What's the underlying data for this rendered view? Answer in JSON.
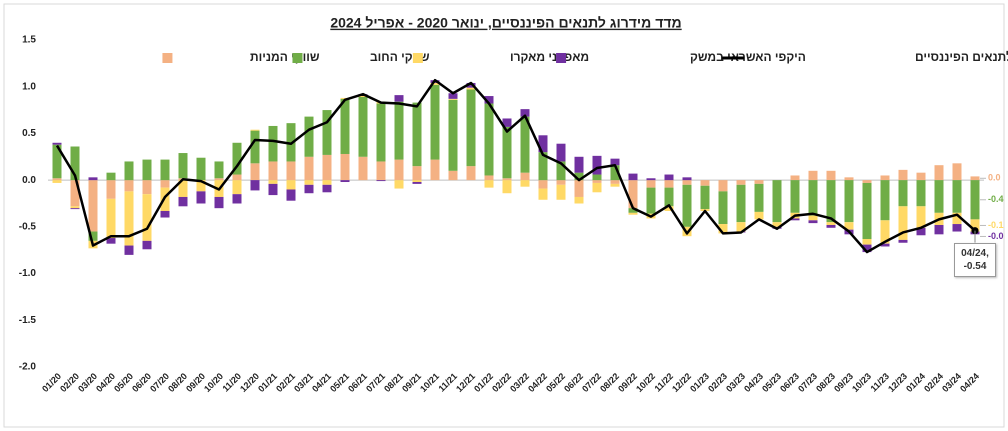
{
  "chart_data": {
    "type": "bar-line",
    "title": "מדד מידרוג לתנאים הפיננסיים, ינואר 2020 - אפריל 2024",
    "categories": [
      "01/20",
      "02/20",
      "03/20",
      "04/20",
      "05/20",
      "06/20",
      "07/20",
      "08/20",
      "09/20",
      "10/20",
      "11/20",
      "12/20",
      "01/21",
      "02/21",
      "03/21",
      "04/21",
      "05/21",
      "06/21",
      "07/21",
      "08/21",
      "09/21",
      "10/21",
      "11/21",
      "12/21",
      "01/22",
      "02/22",
      "03/22",
      "04/22",
      "05/22",
      "06/22",
      "07/22",
      "08/22",
      "09/22",
      "10/22",
      "11/22",
      "12/22",
      "01/23",
      "02/23",
      "03/23",
      "04/23",
      "05/23",
      "06/23",
      "07/23",
      "08/23",
      "09/23",
      "10/23",
      "11/23",
      "12/23",
      "01/24",
      "02/24",
      "03/24",
      "04/24"
    ],
    "ylim": [
      -2,
      1.5
    ],
    "yticks": [
      1.5,
      {
        "value": 1,
        "label": "1.0"
      },
      0.5,
      {
        "value": 0,
        "label": "0.0"
      },
      -0.5,
      {
        "value": -1,
        "label": "-1.0"
      },
      -1.5,
      {
        "value": -2,
        "label": "-2.0"
      }
    ],
    "grid": false,
    "series": [
      {
        "name": "שווקי המניות",
        "kind": "bar",
        "color": "#f4b183",
        "values": [
          0.02,
          -0.28,
          -0.55,
          -0.2,
          -0.12,
          -0.15,
          -0.08,
          0.02,
          0,
          0.02,
          0.06,
          0.18,
          0.2,
          0.2,
          0.25,
          0.27,
          0.28,
          0.25,
          0.2,
          0.22,
          0.15,
          0.22,
          0.1,
          0.15,
          0.05,
          0.02,
          0.08,
          -0.09,
          -0.05,
          -0.18,
          -0.03,
          -0.04,
          -0.3,
          -0.08,
          -0.08,
          -0.05,
          -0.06,
          -0.12,
          -0.05,
          -0.04,
          0,
          0.05,
          0.1,
          0.1,
          0.03,
          -0.03,
          0.05,
          0.11,
          0.08,
          0.16,
          0.18,
          0.04
        ],
        "value_labels": [
          null,
          null,
          null,
          null,
          null,
          null,
          null,
          null,
          null,
          null,
          null,
          null,
          null,
          null,
          null,
          null,
          null,
          null,
          null,
          null,
          null,
          null,
          null,
          null,
          null,
          null,
          null,
          null,
          null,
          null,
          null,
          null,
          null,
          null,
          null,
          null,
          null,
          null,
          null,
          null,
          null,
          null,
          null,
          null,
          null,
          null,
          null,
          null,
          null,
          null,
          null,
          "0.0"
        ]
      },
      {
        "name": "שווקי החוב",
        "kind": "bar",
        "color": "#70ad47",
        "values": [
          0.36,
          0.36,
          -0.1,
          0.08,
          0.2,
          0.22,
          0.22,
          0.27,
          0.24,
          0.18,
          0.34,
          0.35,
          0.38,
          0.41,
          0.43,
          0.48,
          0.59,
          0.64,
          0.62,
          0.62,
          0.68,
          0.8,
          0.76,
          0.82,
          0.77,
          0.55,
          0.6,
          0.3,
          0.2,
          0.08,
          0.06,
          0.16,
          -0.05,
          -0.28,
          -0.2,
          -0.45,
          -0.25,
          -0.35,
          -0.4,
          -0.3,
          -0.45,
          -0.35,
          -0.38,
          -0.45,
          -0.45,
          -0.6,
          -0.43,
          -0.28,
          -0.28,
          -0.35,
          -0.35,
          -0.42
        ],
        "value_labels": [
          null,
          null,
          null,
          null,
          null,
          null,
          null,
          null,
          null,
          null,
          null,
          null,
          null,
          null,
          null,
          null,
          null,
          null,
          null,
          null,
          null,
          null,
          null,
          null,
          null,
          null,
          null,
          null,
          null,
          null,
          null,
          null,
          null,
          null,
          null,
          null,
          null,
          null,
          null,
          null,
          null,
          null,
          null,
          null,
          null,
          null,
          null,
          null,
          null,
          null,
          null,
          "-0.4"
        ]
      },
      {
        "name": "מאפייני מאקרו",
        "kind": "bar",
        "color": "#ffd966",
        "values": [
          -0.03,
          -0.02,
          -0.08,
          -0.42,
          -0.58,
          -0.5,
          -0.25,
          -0.18,
          -0.12,
          -0.18,
          -0.15,
          0.01,
          -0.04,
          -0.1,
          -0.05,
          -0.05,
          0.01,
          0.02,
          0.02,
          -0.09,
          -0.02,
          0.02,
          0.01,
          0.02,
          -0.08,
          -0.14,
          -0.07,
          -0.12,
          -0.16,
          -0.07,
          -0.1,
          -0.03,
          -0.02,
          -0.05,
          -0.05,
          -0.1,
          -0.02,
          -0.1,
          -0.1,
          -0.08,
          -0.05,
          -0.06,
          -0.05,
          -0.03,
          -0.08,
          -0.06,
          -0.25,
          -0.36,
          -0.23,
          -0.13,
          -0.12,
          -0.13
        ],
        "value_labels": [
          null,
          null,
          null,
          null,
          null,
          null,
          null,
          null,
          null,
          null,
          null,
          null,
          null,
          null,
          null,
          null,
          null,
          null,
          null,
          null,
          null,
          null,
          null,
          null,
          null,
          null,
          null,
          null,
          null,
          null,
          null,
          null,
          null,
          null,
          null,
          null,
          null,
          null,
          null,
          null,
          null,
          null,
          null,
          null,
          null,
          null,
          null,
          null,
          null,
          null,
          null,
          "-0.1"
        ]
      },
      {
        "name": "היקפי האשראי במשק",
        "kind": "bar",
        "color": "#7030a0",
        "values": [
          0.02,
          -0.01,
          0.03,
          -0.06,
          -0.1,
          -0.09,
          -0.07,
          -0.1,
          -0.13,
          -0.12,
          -0.1,
          -0.11,
          -0.12,
          -0.12,
          -0.09,
          -0.08,
          -0.02,
          0.01,
          -0.01,
          0.07,
          -0.02,
          0.03,
          0.06,
          0.05,
          0.08,
          0.09,
          0.08,
          0.18,
          0.19,
          0.17,
          0.2,
          0.07,
          0.07,
          0.02,
          0.06,
          0.03,
          0,
          0,
          -0.01,
          0,
          -0.02,
          -0.02,
          -0.03,
          -0.03,
          -0.05,
          -0.08,
          -0.03,
          -0.03,
          -0.08,
          -0.1,
          -0.08,
          -0.03
        ],
        "value_labels": [
          null,
          null,
          null,
          null,
          null,
          null,
          null,
          null,
          null,
          null,
          null,
          null,
          null,
          null,
          null,
          null,
          null,
          null,
          null,
          null,
          null,
          null,
          null,
          null,
          null,
          null,
          null,
          null,
          null,
          null,
          null,
          null,
          null,
          null,
          null,
          null,
          null,
          null,
          null,
          null,
          null,
          null,
          null,
          null,
          null,
          null,
          null,
          null,
          null,
          null,
          null,
          "-0.0"
        ]
      },
      {
        "name": "מדד מידרוג לתנאים הפיננסיים",
        "kind": "line",
        "color": "#000000",
        "values": [
          0.37,
          0.05,
          -0.7,
          -0.6,
          -0.6,
          -0.52,
          -0.18,
          0.01,
          -0.01,
          -0.1,
          0.15,
          0.43,
          0.42,
          0.39,
          0.54,
          0.62,
          0.86,
          0.92,
          0.83,
          0.82,
          0.79,
          1.07,
          0.93,
          1.04,
          0.82,
          0.52,
          0.69,
          0.27,
          0.18,
          0,
          0.13,
          0.16,
          -0.3,
          -0.39,
          -0.27,
          -0.57,
          -0.33,
          -0.57,
          -0.56,
          -0.42,
          -0.52,
          -0.38,
          -0.36,
          -0.41,
          -0.55,
          -0.77,
          -0.66,
          -0.56,
          -0.51,
          -0.42,
          -0.37,
          -0.54
        ],
        "value_labels": [
          null,
          null,
          null,
          null,
          null,
          null,
          null,
          null,
          null,
          null,
          null,
          null,
          null,
          null,
          null,
          null,
          null,
          null,
          null,
          null,
          null,
          null,
          null,
          null,
          null,
          null,
          null,
          null,
          null,
          null,
          null,
          null,
          null,
          null,
          null,
          null,
          null,
          null,
          null,
          null,
          null,
          null,
          null,
          null,
          null,
          null,
          null,
          null,
          null,
          null,
          null,
          "04/24, -0.54"
        ]
      }
    ]
  }
}
